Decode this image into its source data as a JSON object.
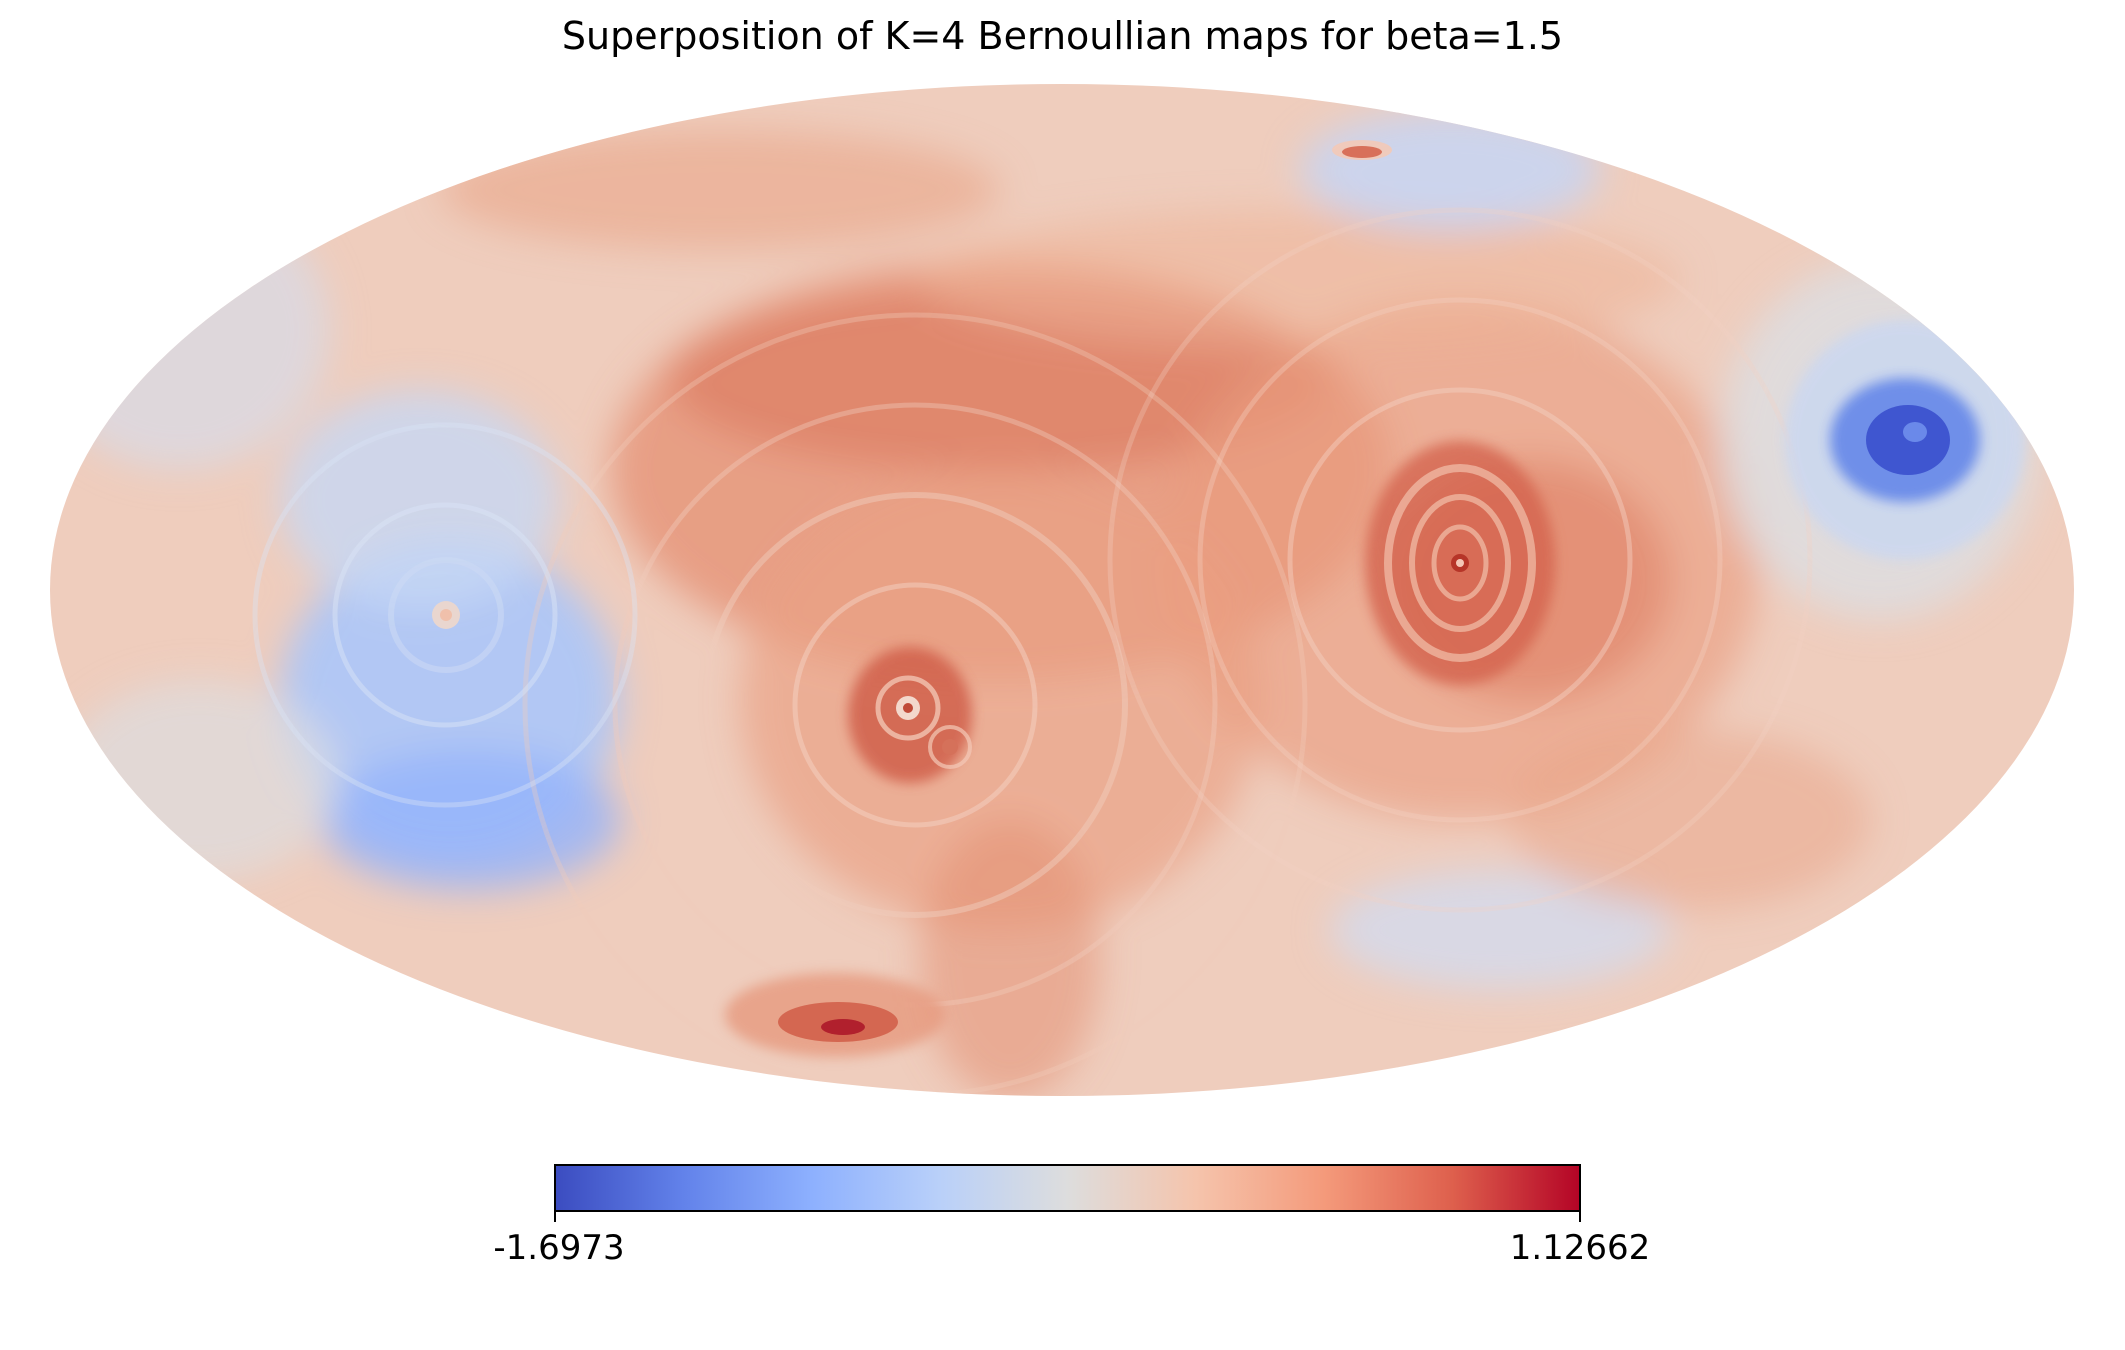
{
  "title": "Superposition of K=4 Bernoullian maps for beta=1.5",
  "projection": "mollweide",
  "colormap": "coolwarm",
  "colorbar": {
    "min_label": "-1.6973",
    "max_label": "1.12662",
    "min_value": -1.6973,
    "max_value": 1.12662,
    "colors": [
      "#3b4cc0",
      "#6282ea",
      "#8db0fe",
      "#b9d0f9",
      "#dddddd",
      "#f5c4ac",
      "#f49a7b",
      "#de604d",
      "#b40426"
    ]
  },
  "features": [
    {
      "name": "blue-spot-east",
      "value": -1.69
    },
    {
      "name": "ring-center-right",
      "value": 0.95
    },
    {
      "name": "double-ring-center",
      "value": 0.9
    },
    {
      "name": "hot-spot-south",
      "value": 1.1
    },
    {
      "name": "spot-north",
      "value": 0.85
    },
    {
      "name": "cool-region-west",
      "value": -0.9
    }
  ]
}
